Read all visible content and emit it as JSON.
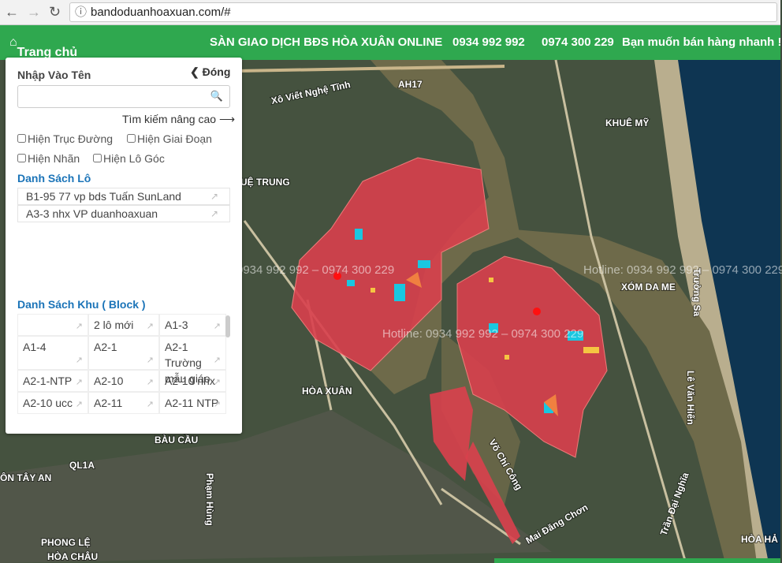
{
  "browser": {
    "url": "bandoduanhoaxuan.com/#"
  },
  "header": {
    "home": "Trang chủ",
    "title": "SÀN GIAO DỊCH BĐS HÒA XUÂN ONLINE",
    "phone1": "0934 992 992",
    "phone2": "0974 300 229",
    "slogan": "Bạn muốn bán hàng nhanh !"
  },
  "panel": {
    "search_label": "Nhập Vào Tên",
    "close": "Đóng",
    "advanced": "Tìm kiếm nâng cao",
    "options": [
      "Hiện Trục Đường",
      "Hiện Giai Đoạn",
      "Hiện Nhãn",
      "Hiện Lô Góc"
    ],
    "lots_title": "Danh Sách Lô",
    "lots": [
      "B1-95 77 vp bds Tuấn SunLand",
      "A3-3 nhx VP duanhoaxuan"
    ],
    "blocks_title": "Danh Sách Khu ( Block )",
    "blocks": [
      "2 lô mới",
      "A1-3",
      "A1-4",
      "A2-1",
      "A2-1 Trường mẫu giáo",
      "A2-1-NTP",
      "A2-10",
      "A2-10 nhx",
      "A2-10 ucc",
      "A2-11",
      "A2-11 NTP"
    ]
  },
  "map": {
    "labels": [
      "Xô Viết Nghệ Tĩnh",
      "KHUÊ MỸ",
      "UỆ TRUNG",
      "XÓM DA ME",
      "HÒA XUÂN",
      "BÀU CẦU",
      "ÔN TÂY AN",
      "PHONG LỆ",
      "HÒA CHÂU",
      "HÒA HẢ",
      "Lê Văn Hiến",
      "Trường Sa",
      "Võ Chí Công",
      "Mai Đăng Chơn",
      "Phạm Hùng",
      "Trần Đại Nghĩa",
      "AH17",
      "QL1A"
    ],
    "watermarks": [
      "Hotline: 0934 992 992 – 0974 300 229",
      "Hotline: 0934 992 992 – 0974 300 229",
      "0934 992 992 – 0974 300 229"
    ]
  }
}
